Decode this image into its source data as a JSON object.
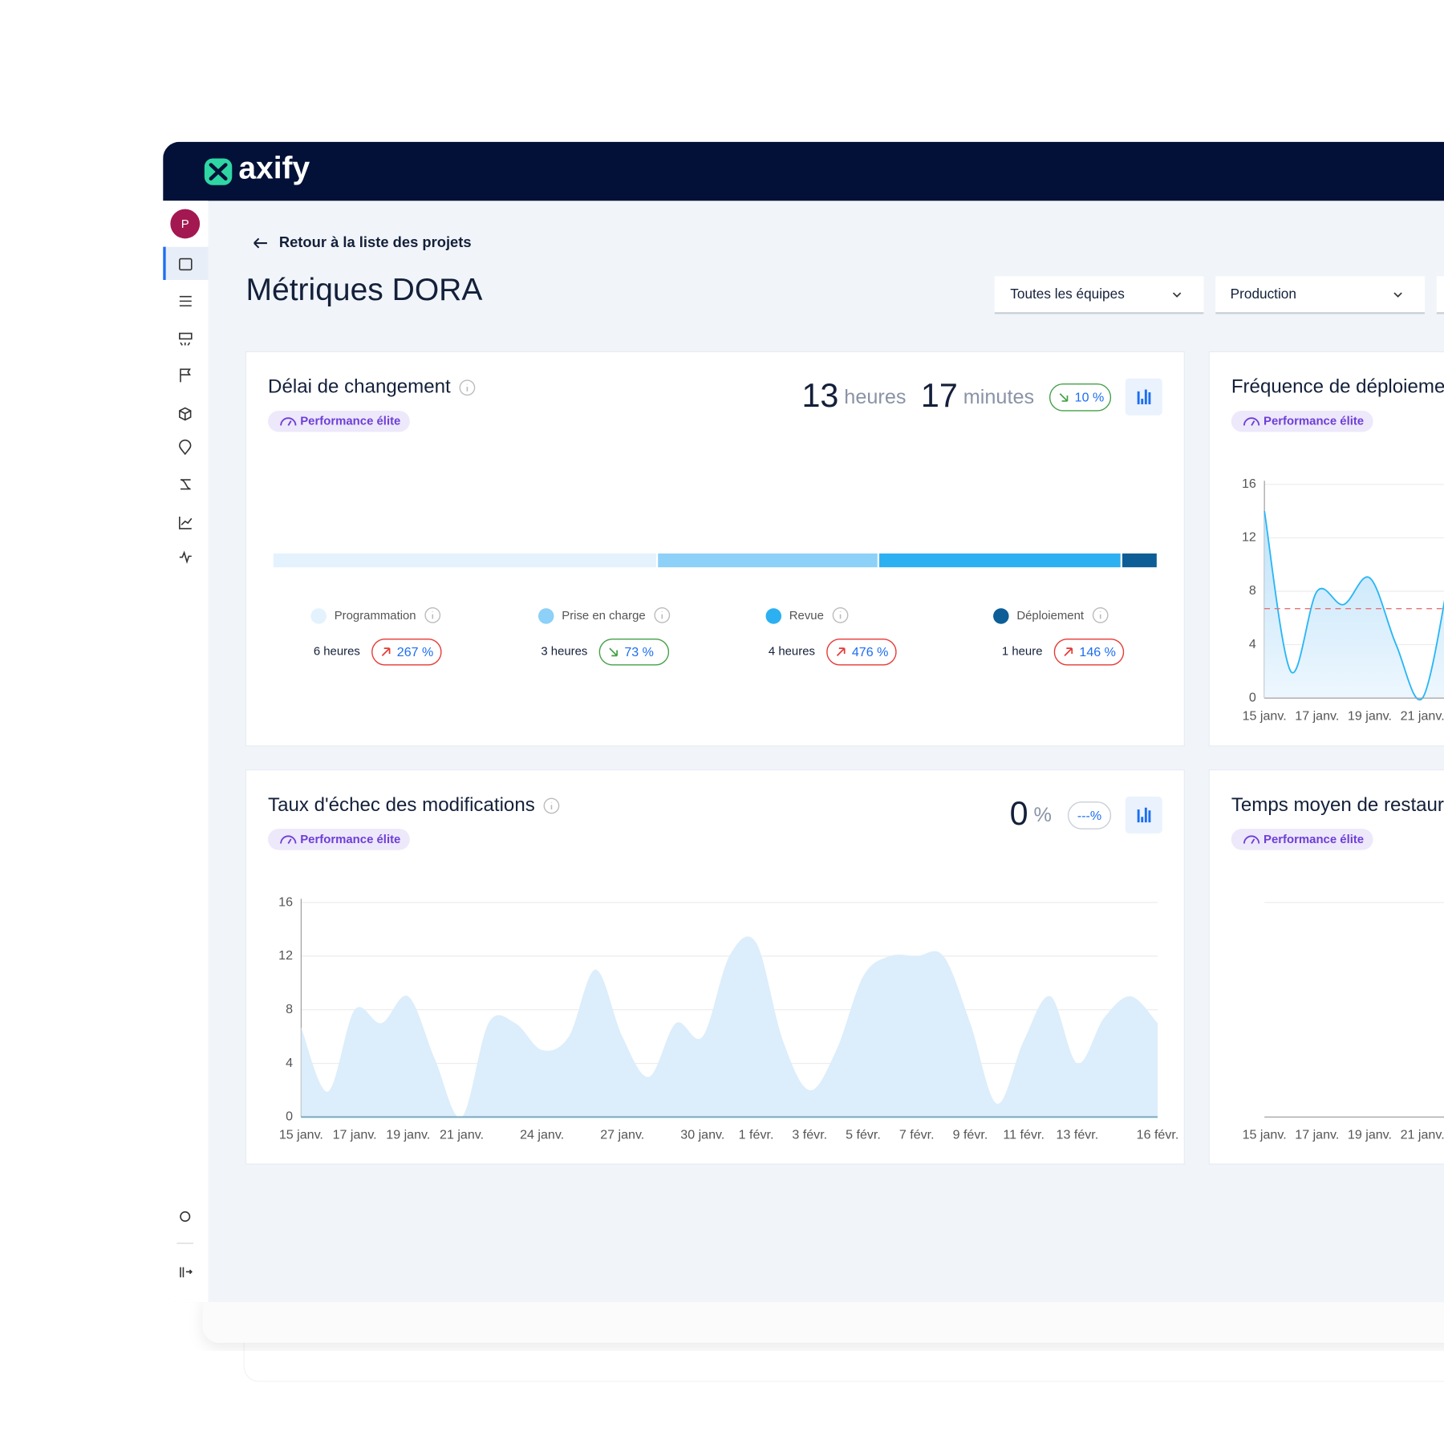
{
  "brand": "axify",
  "user_initial": "P",
  "back_link": "Retour à la liste des projets",
  "page_title": "Métriques DORA",
  "filters": [
    "Toutes les équipes",
    "Production"
  ],
  "lead_time": {
    "title": "Délai de changement",
    "badge": "Performance élite",
    "headline": [
      {
        "value": 13,
        "unit": "heures"
      },
      {
        "value": 17,
        "unit": "minutes"
      }
    ],
    "trend": {
      "label": "10 %",
      "direction": "down"
    },
    "chart_data": {
      "type": "stacked_bar",
      "orientation": "horizontal",
      "series": [
        {
          "name": "Programmation",
          "color": "#e3f2fd",
          "values": [
            5.79
          ],
          "value_labels": [
            "6 heures"
          ],
          "trend": "267 %",
          "trend_direction": "up"
        },
        {
          "name": "Prise en charge",
          "color": "#8dd0f8",
          "values": [
            3.32
          ],
          "value_labels": [
            "3 heures"
          ],
          "trend": "73 %",
          "trend_direction": "down"
        },
        {
          "name": "Revue",
          "color": "#2cb0f2",
          "values": [
            3.65
          ],
          "value_labels": [
            "4 heures"
          ],
          "trend": "476 %",
          "trend_direction": "up"
        },
        {
          "name": "Déploiement",
          "color": "#0d5e96",
          "values": [
            0.52
          ],
          "value_labels": [
            "1 heure"
          ],
          "trend": "146 %",
          "trend_direction": "up"
        }
      ]
    }
  },
  "deploy_frequency": {
    "title": "Fréquence de déploiement",
    "badge": "Performance élite",
    "chart_data": {
      "type": "line",
      "categories": [
        "15 janv.",
        null,
        "17 janv.",
        null,
        "19 janv.",
        null,
        "21 janv.",
        null
      ],
      "series": [
        {
          "color": "#29b6f6",
          "fill": "#d3ebfb",
          "values": [
            14,
            2,
            8,
            7,
            9,
            4,
            0,
            9
          ]
        }
      ],
      "reference_line": {
        "value": 6.7,
        "color": "#e57373"
      },
      "ylim": [
        0,
        16
      ],
      "yticks": [
        0,
        4,
        8,
        12,
        16
      ],
      "grid": true
    }
  },
  "failure_rate": {
    "title": "Taux d'échec des modifications",
    "badge": "Performance élite",
    "headline": [
      {
        "value": 0,
        "unit": "%"
      }
    ],
    "trend": {
      "label": "---%",
      "direction": "none"
    },
    "chart_data": {
      "type": "line",
      "categories": [
        "15 janv.",
        null,
        "17 janv.",
        null,
        "19 janv.",
        null,
        "21 janv.",
        null,
        null,
        "24 janv.",
        null,
        null,
        "27 janv.",
        null,
        null,
        "30 janv.",
        null,
        "1 févr.",
        null,
        "3 févr.",
        null,
        "5 févr.",
        null,
        "7 févr.",
        null,
        "9 févr.",
        null,
        "11 févr.",
        null,
        "13 févr.",
        null,
        null,
        "16 févr."
      ],
      "series": [
        {
          "fill": "#dcedfb",
          "values": [
            6.7,
            1.9,
            8,
            7,
            9,
            4.3,
            0,
            7,
            7,
            5,
            6,
            11,
            6,
            3,
            7,
            6,
            12,
            13,
            5.7,
            2,
            5,
            10.5,
            12,
            12,
            12,
            7,
            1,
            5.7,
            9,
            4,
            7.4,
            9,
            7
          ]
        },
        {
          "color": "#29b6f6",
          "values": [
            0,
            0,
            0,
            0,
            0,
            0,
            0,
            0,
            0,
            0,
            0,
            0,
            0,
            0,
            0,
            0,
            0,
            0,
            0,
            0,
            0,
            0,
            0,
            0,
            0,
            0,
            0,
            0,
            0,
            0,
            0,
            0,
            0
          ]
        }
      ],
      "ylim": [
        0,
        16
      ],
      "yticks": [
        0,
        4,
        8,
        12,
        16
      ],
      "grid": true
    }
  },
  "restore_time": {
    "title": "Temps moyen de restauration",
    "badge": "Performance élite",
    "chart_data": {
      "type": "line",
      "categories": [
        "15 janv.",
        null,
        "17 janv.",
        null,
        "19 janv.",
        null,
        "21 janv.",
        null
      ],
      "series": []
    }
  }
}
